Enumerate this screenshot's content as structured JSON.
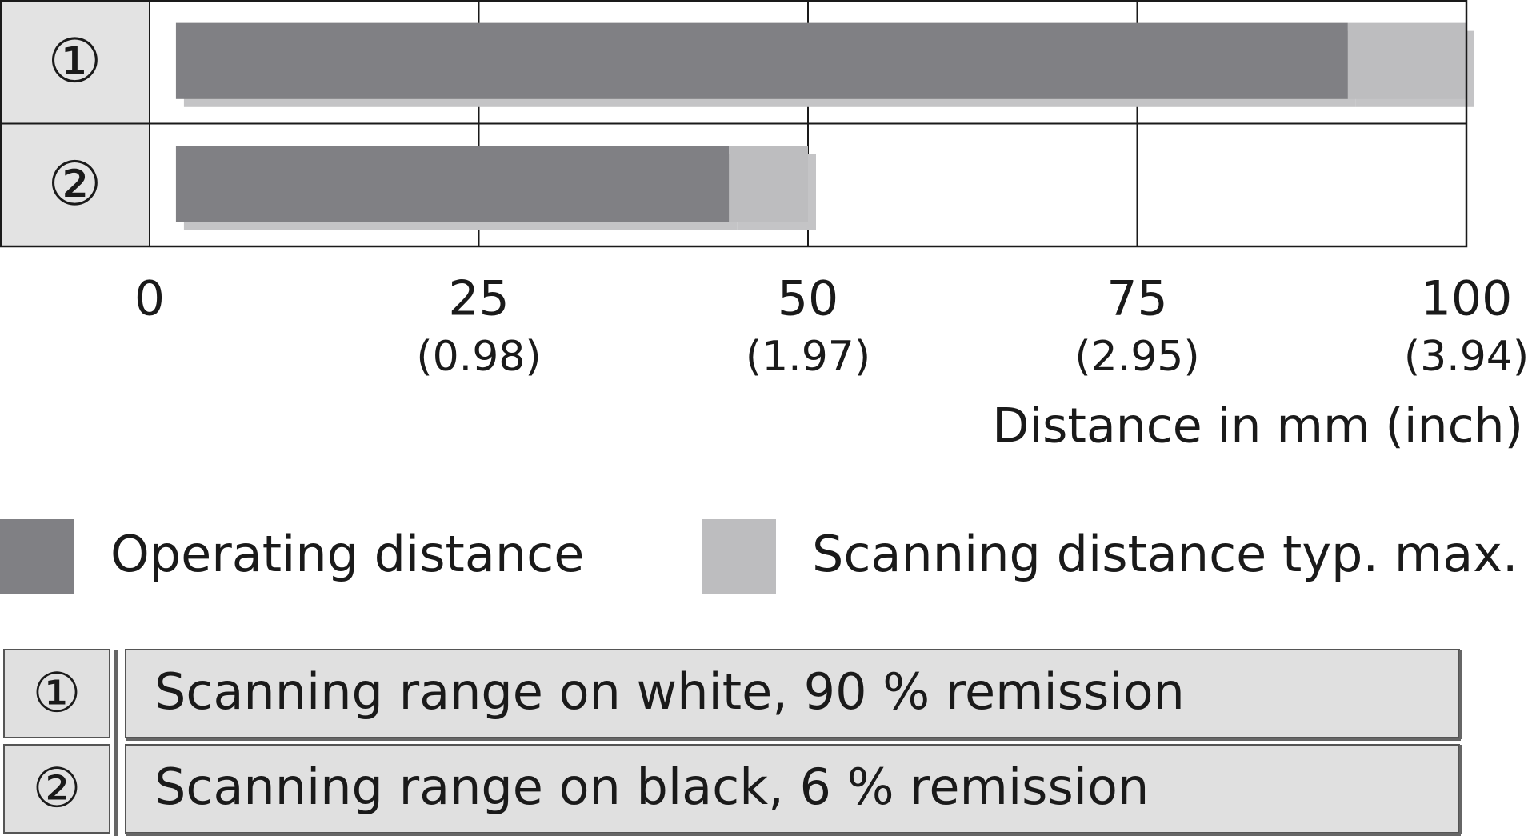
{
  "chart_data": {
    "type": "range-bar",
    "categories": [
      "①",
      "②"
    ],
    "series": [
      {
        "name": "Operating distance",
        "color": "#808084",
        "values": [
          [
            2,
            91
          ],
          [
            2,
            44
          ]
        ]
      },
      {
        "name": "Scanning distance typ. max.",
        "color": "#bdbdbf",
        "values": [
          [
            91,
            100
          ],
          [
            44,
            50
          ]
        ]
      }
    ],
    "xlim": [
      0,
      100
    ],
    "xticks": [
      0,
      25,
      50,
      75,
      100
    ],
    "xtick_sublabels": [
      null,
      "(0.98)",
      "(1.97)",
      "(2.95)",
      "(3.94)"
    ],
    "xlabel": "Distance in mm (inch)",
    "grid": true,
    "notes": [
      {
        "marker": "①",
        "text": "Scanning range on white, 90 % remission"
      },
      {
        "marker": "②",
        "text": "Scanning range on black, 6 % remission"
      }
    ]
  }
}
